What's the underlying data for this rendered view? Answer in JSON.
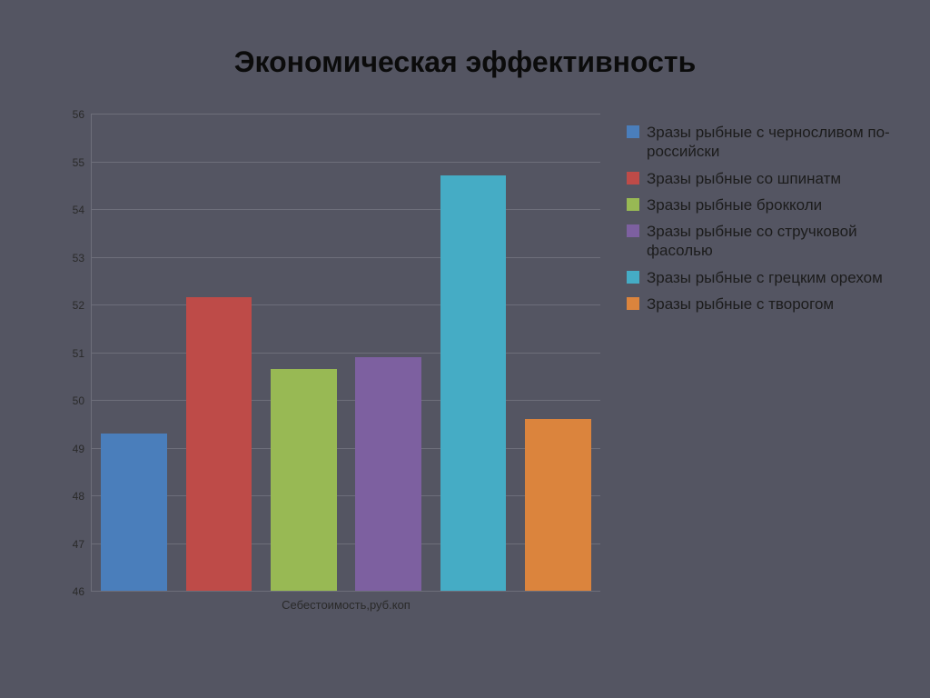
{
  "title": "Экономическая  эффективность",
  "background_color": "#545562",
  "chart": {
    "type": "bar",
    "x_label": "Себестоимость,руб.коп",
    "ylim": [
      46,
      56
    ],
    "yticks": [
      46,
      47,
      48,
      49,
      50,
      51,
      52,
      53,
      54,
      55,
      56
    ],
    "grid_color": "#6d6e7a",
    "tick_fontsize": 12,
    "xlabel_fontsize": 13,
    "bar_width": 0.78,
    "series": [
      {
        "label": "Зразы рыбные с черносливом по-российски",
        "value": 49.3,
        "color": "#4a7ebb"
      },
      {
        "label": "Зразы рыбные со шпинатм",
        "value": 52.15,
        "color": "#be4b48"
      },
      {
        "label": "Зразы рыбные брокколи",
        "value": 50.65,
        "color": "#98b954"
      },
      {
        "label": "Зразы рыбные со стручковой фасолью",
        "value": 50.9,
        "color": "#7d60a0"
      },
      {
        "label": "Зразы рыбные с грецким орехом",
        "value": 54.7,
        "color": "#45acc5"
      },
      {
        "label": "Зразы рыбные с творогом",
        "value": 49.6,
        "color": "#db843d"
      }
    ]
  },
  "legend": {
    "fontsize": 17,
    "swatch_size": 14
  }
}
